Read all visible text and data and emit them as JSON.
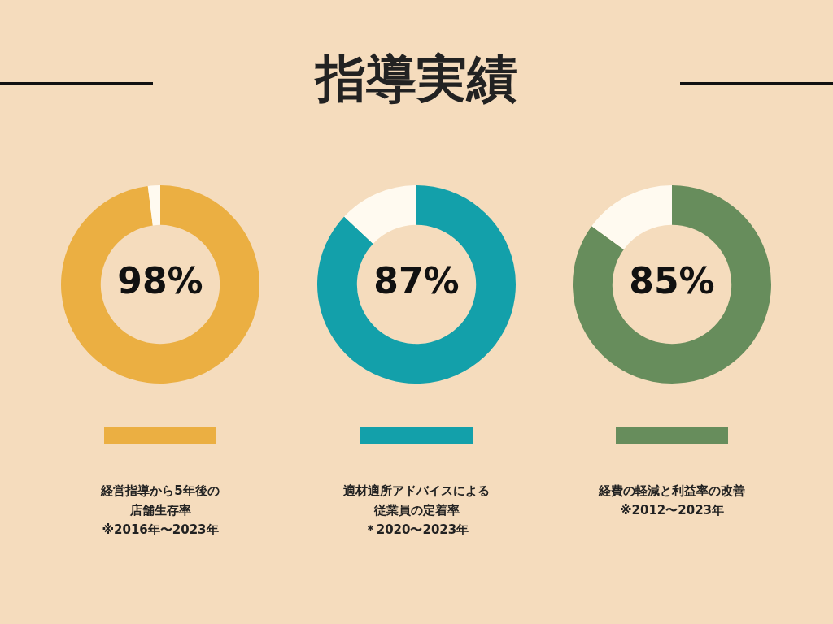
{
  "chart_data": [
    {
      "type": "donut",
      "categories": [
        null,
        null
      ],
      "values": [
        98,
        2
      ],
      "colors": [
        "#ebaf42",
        "#fffaf0"
      ],
      "value_labels": [
        "98%",
        null
      ],
      "legend": false,
      "annotations": [
        "経営指導から5年後の",
        "店舗生存率",
        "※2016年〜2023年"
      ]
    },
    {
      "type": "donut",
      "title": "指導実績",
      "categories": [
        null,
        null
      ],
      "values": [
        87,
        13
      ],
      "colors": [
        "#13a0aa",
        "#fffaf0"
      ],
      "value_labels": [
        "87%",
        null
      ],
      "legend": false,
      "annotations": [
        "適材適所アドバイスによる",
        "従業員の定着率",
        "＊2020〜2023年"
      ]
    },
    {
      "type": "donut",
      "categories": [
        null,
        null
      ],
      "values": [
        85,
        15
      ],
      "colors": [
        "#678d5c",
        "#fffaf0"
      ],
      "value_labels": [
        "85%",
        null
      ],
      "legend": false,
      "annotations": [
        "経費の軽減と利益率の改善",
        "※2012〜2023年"
      ]
    }
  ]
}
